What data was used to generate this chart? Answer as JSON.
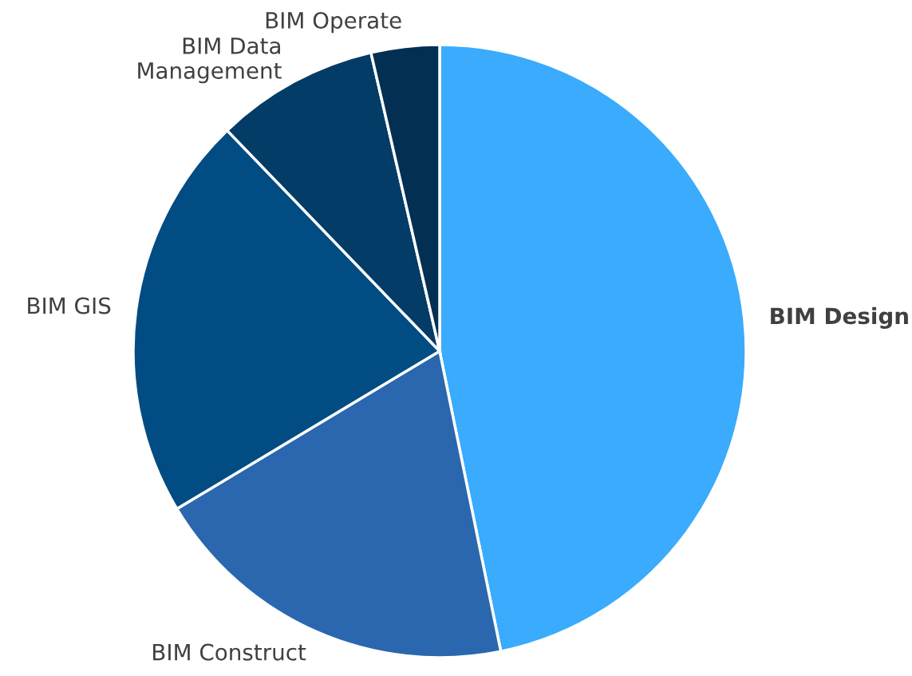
{
  "chart_data": {
    "type": "pie",
    "categories": [
      "BIM Design",
      "BIM Construct",
      "BIM GIS",
      "BIM Data\nManagement",
      "BIM Operate"
    ],
    "values": [
      46.8,
      19.6,
      21.4,
      8.6,
      3.6
    ],
    "colors": [
      "#3aabfd",
      "#2a67ae",
      "#014c82",
      "#033c66",
      "#032f52"
    ]
  }
}
